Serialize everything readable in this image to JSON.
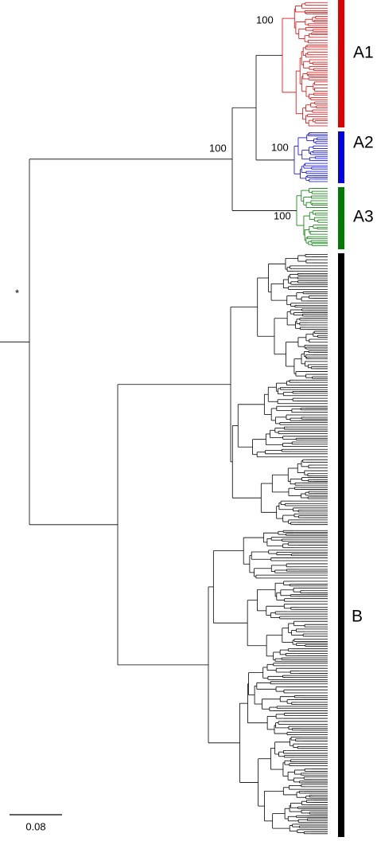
{
  "tree": {
    "root_label": "*",
    "supports": [
      {
        "node": "A",
        "label": "100"
      },
      {
        "node": "A1",
        "label": "100"
      },
      {
        "node": "A2",
        "label": "100"
      },
      {
        "node": "A3",
        "label": "100"
      }
    ],
    "clades": [
      {
        "label": "A1",
        "color": "#e00000"
      },
      {
        "label": "A2",
        "color": "#0000e0"
      },
      {
        "label": "A3",
        "color": "#007a00"
      },
      {
        "label": "B",
        "color": "#000000"
      }
    ],
    "scale_bar": "0.08"
  }
}
